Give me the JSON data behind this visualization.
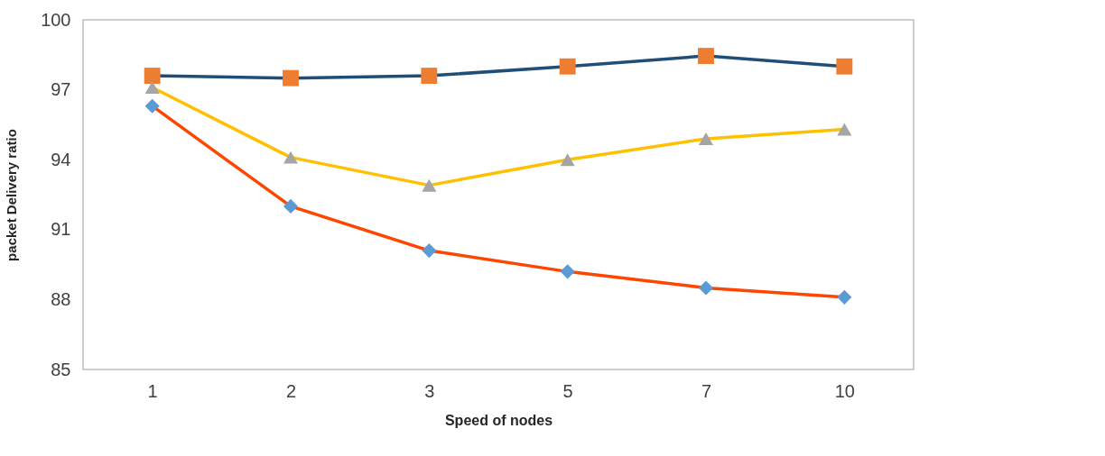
{
  "chart_data": {
    "type": "line",
    "xlabel": "Speed of nodes",
    "ylabel": "packet Delivery ratio",
    "categories": [
      "1",
      "2",
      "3",
      "5",
      "7",
      "10"
    ],
    "ylim": [
      85,
      100
    ],
    "yticks": [
      85,
      88,
      91,
      94,
      97,
      100
    ],
    "grid": false,
    "line_style": "solid",
    "series": [
      {
        "color": "#1f4e79",
        "marker": "square",
        "colors": [
          "#ed7d31",
          "#ed7d31",
          "#ed7d31",
          "#ed7d31",
          "#ed7d31",
          "#ed7d31"
        ],
        "values": [
          97.6,
          97.5,
          97.6,
          98.0,
          98.45,
          98.0
        ]
      },
      {
        "color": "#ffc000",
        "marker": "triangle",
        "colors": [
          "#a5a5a5",
          "#a5a5a5",
          "#a5a5a5",
          "#a5a5a5",
          "#a5a5a5",
          "#a5a5a5"
        ],
        "values": [
          97.1,
          94.1,
          92.9,
          94.0,
          94.9,
          95.3
        ]
      },
      {
        "color": "#ff4500",
        "marker": "diamond",
        "colors": [
          "#5b9bd5",
          "#5b9bd5",
          "#5b9bd5",
          "#5b9bd5",
          "#5b9bd5",
          "#5b9bd5"
        ],
        "values": [
          96.3,
          92.0,
          90.1,
          89.2,
          88.5,
          88.1
        ]
      }
    ]
  }
}
